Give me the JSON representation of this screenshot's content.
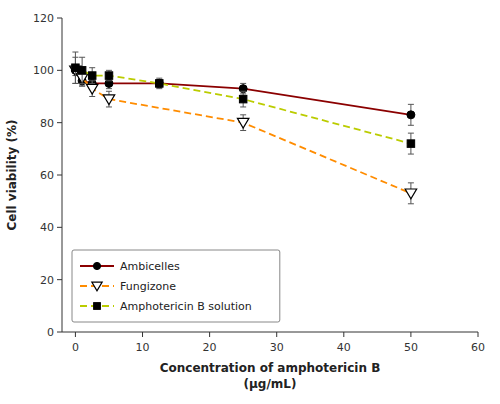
{
  "chart_data": {
    "type": "line",
    "xlabel": "Concentration of amphotericin B\n(μg/mL)",
    "ylabel": "Cell viability (%)",
    "xlim": [
      -2,
      60
    ],
    "ylim": [
      0,
      120
    ],
    "xticks": [
      0,
      10,
      20,
      30,
      40,
      50,
      60
    ],
    "yticks": [
      0,
      20,
      40,
      60,
      80,
      100,
      120
    ],
    "grid": false,
    "legend": "lower left",
    "series": [
      {
        "name": "Ambicelles",
        "color": "#8B0000",
        "marker": "circle",
        "line_style": "solid",
        "x": [
          0,
          1,
          2.5,
          5,
          12.5,
          25,
          50
        ],
        "values": [
          100,
          96,
          95,
          95,
          95,
          93,
          83
        ],
        "errors": [
          2,
          2,
          2,
          2,
          1.5,
          2,
          4
        ]
      },
      {
        "name": "Fungizone",
        "color": "#FF8C00",
        "marker": "triangle-down-open",
        "line_style": "dashed",
        "x": [
          0,
          1,
          2.5,
          5,
          25,
          50
        ],
        "values": [
          100,
          97,
          93,
          89,
          80,
          53
        ],
        "errors": [
          5,
          3,
          3,
          3,
          3,
          4
        ]
      },
      {
        "name": "Amphotericin B solution",
        "color": "#BBCC00",
        "marker": "square",
        "line_style": "dashed",
        "x": [
          0,
          1,
          2.5,
          5,
          12.5,
          25,
          50
        ],
        "values": [
          101,
          100,
          98,
          98,
          95,
          89,
          72
        ],
        "errors": [
          6,
          5,
          3,
          2,
          2,
          3,
          4
        ]
      }
    ]
  }
}
